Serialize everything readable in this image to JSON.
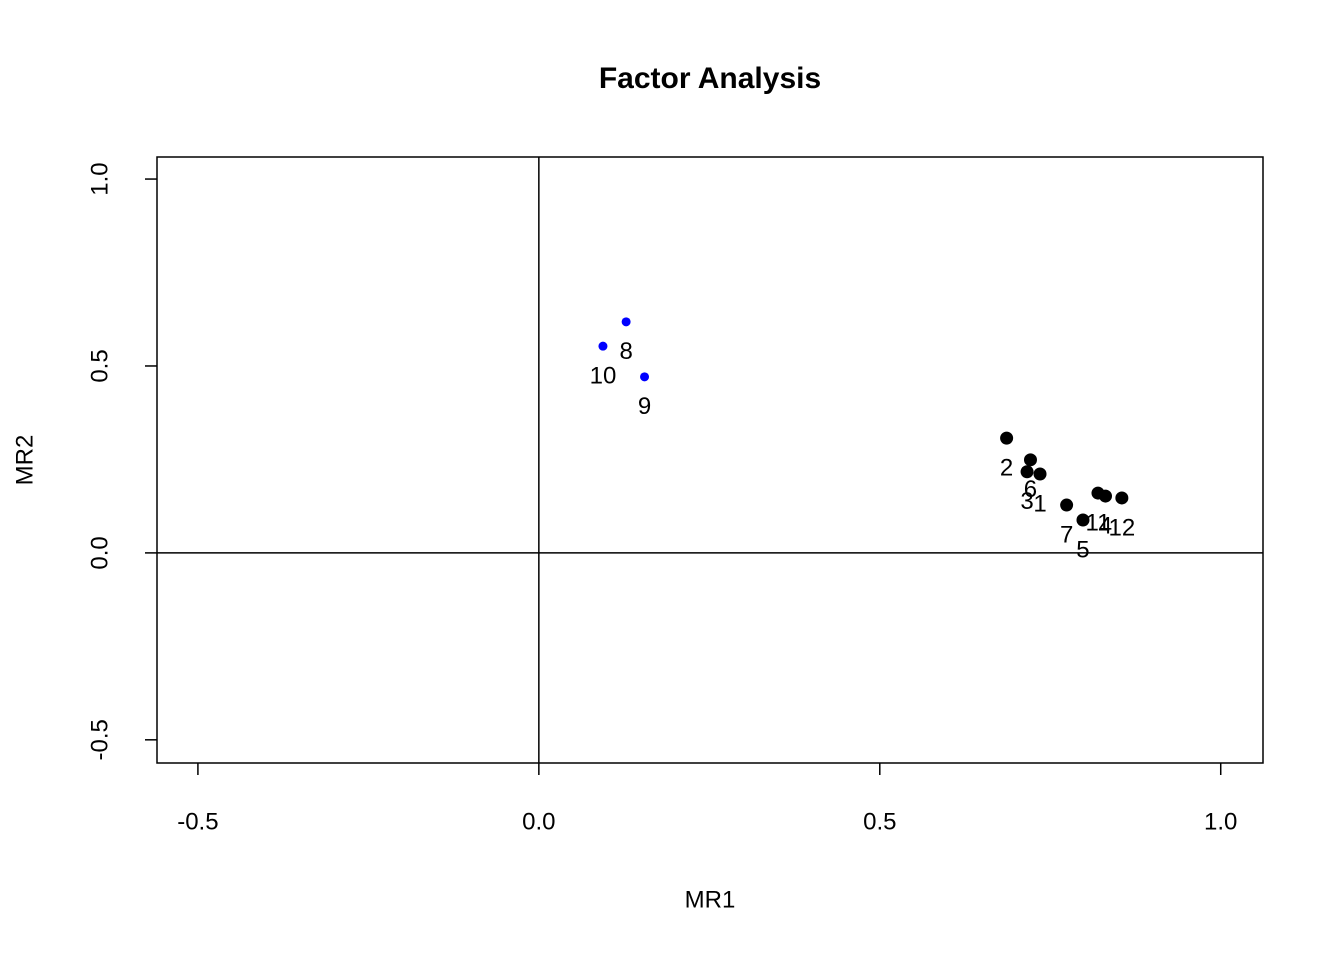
{
  "chart_data": {
    "type": "scatter",
    "title": "Factor Analysis",
    "x_label": "MR1",
    "y_label": "MR2",
    "xlim": [
      -0.56,
      1.062
    ],
    "ylim": [
      -0.562,
      1.059
    ],
    "xticks": [
      -0.5,
      {
        "value": 0,
        "label": "0.0"
      },
      0.5,
      {
        "value": 1,
        "label": "1.0"
      }
    ],
    "yticks": [
      -0.5,
      {
        "value": 0,
        "label": "0.0"
      },
      0.5,
      {
        "value": 1,
        "label": "1.0"
      }
    ],
    "hlines": [
      0
    ],
    "vlines": [
      0
    ],
    "series": [
      {
        "color": "#000000",
        "x": [
          0.735,
          0.686,
          0.716,
          0.831,
          0.798,
          0.721,
          0.774,
          0.82,
          0.855
        ],
        "values": [
          0.211,
          0.307,
          0.217,
          0.152,
          0.088,
          0.249,
          0.128,
          0.16,
          0.147
        ],
        "labels": [
          "1",
          "2",
          "3",
          "4",
          "5",
          "6",
          "7",
          "11",
          "12"
        ]
      },
      {
        "color": "#0000ff",
        "x": [
          0.128,
          0.155,
          0.094
        ],
        "values": [
          0.618,
          0.471,
          0.553
        ],
        "labels": [
          "8",
          "9",
          "10"
        ]
      }
    ]
  }
}
